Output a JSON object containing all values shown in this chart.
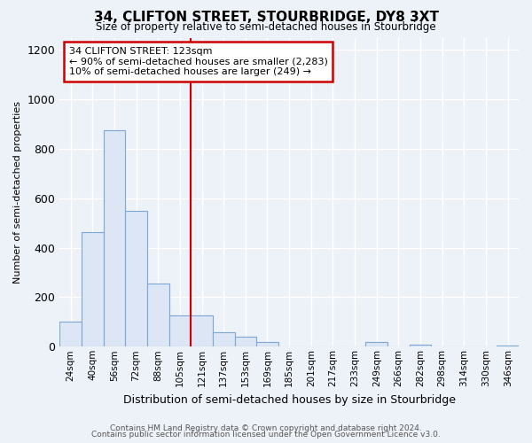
{
  "title1": "34, CLIFTON STREET, STOURBRIDGE, DY8 3XT",
  "title2": "Size of property relative to semi-detached houses in Stourbridge",
  "xlabel": "Distribution of semi-detached houses by size in Stourbridge",
  "ylabel": "Number of semi-detached properties",
  "bar_labels": [
    "24sqm",
    "40sqm",
    "56sqm",
    "72sqm",
    "88sqm",
    "105sqm",
    "121sqm",
    "137sqm",
    "153sqm",
    "169sqm",
    "185sqm",
    "201sqm",
    "217sqm",
    "233sqm",
    "249sqm",
    "266sqm",
    "282sqm",
    "298sqm",
    "314sqm",
    "330sqm",
    "346sqm"
  ],
  "bar_values": [
    100,
    465,
    875,
    550,
    255,
    125,
    125,
    60,
    40,
    18,
    0,
    0,
    0,
    0,
    18,
    0,
    8,
    0,
    0,
    0,
    5
  ],
  "bar_color": "#dce6f5",
  "bar_edge_color": "#7da7d4",
  "vline_color": "#cc0000",
  "vline_x": 5.5,
  "annotation_title": "34 CLIFTON STREET: 123sqm",
  "annotation_line1": "← 90% of semi-detached houses are smaller (2,283)",
  "annotation_line2": "10% of semi-detached houses are larger (249) →",
  "annotation_box_color": "#ffffff",
  "annotation_border_color": "#cc0000",
  "ylim": [
    0,
    1250
  ],
  "yticks": [
    0,
    200,
    400,
    600,
    800,
    1000,
    1200
  ],
  "footer1": "Contains HM Land Registry data © Crown copyright and database right 2024.",
  "footer2": "Contains public sector information licensed under the Open Government Licence v3.0.",
  "bg_color": "#edf1f8",
  "grid_color": "#ffffff"
}
